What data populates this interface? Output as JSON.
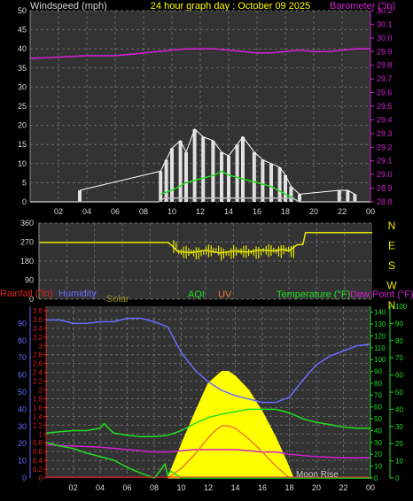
{
  "header": {
    "windspeed_label": "Windspeed (mph)",
    "title": "24 hour graph day : October 09 2025",
    "barometer_label": "Barometer (″in)"
  },
  "colors": {
    "background": "#000000",
    "plot_bg": "#333333",
    "grid": "#6a6a6a",
    "wind_gust": "#ffffff",
    "wind_avg": "#22dd22",
    "wind_base": "#bbbbbb",
    "barometer": "#d020d0",
    "direction": "#e8e800",
    "humidity": "#6a6aff",
    "solar": "#ffff00",
    "uv": "#f07c30",
    "temperature": "#22dd22",
    "dew_point": "#d020d0",
    "rain": "#e02020",
    "aqi": "#22dd22",
    "moon": "#c8c8c8"
  },
  "chart_data": [
    {
      "id": "wind-barometer",
      "type": "line",
      "x_ticks": [
        "02",
        "04",
        "06",
        "08",
        "10",
        "12",
        "14",
        "16",
        "18",
        "20",
        "22",
        "00"
      ],
      "y_left": {
        "label": "Windspeed (mph)",
        "ticks": [
          0,
          5,
          10,
          15,
          20,
          25,
          30,
          35,
          40,
          45,
          50
        ],
        "range": [
          0,
          50
        ]
      },
      "y_right": {
        "label": "Barometer (″in)",
        "ticks": [
          28.8,
          28.9,
          29.0,
          29.1,
          29.2,
          29.3,
          29.4,
          29.5,
          29.6,
          29.7,
          29.8,
          29.9,
          30.0,
          30.1,
          30.2
        ],
        "range": [
          28.8,
          30.2
        ]
      },
      "series": [
        {
          "id": "barometer",
          "color_key": "barometer",
          "axis": "right",
          "points": [
            [
              0,
              29.85
            ],
            [
              2,
              29.86
            ],
            [
              4,
              29.87
            ],
            [
              6,
              29.87
            ],
            [
              7,
              29.88
            ],
            [
              8,
              29.89
            ],
            [
              9,
              29.9
            ],
            [
              10,
              29.91
            ],
            [
              11,
              29.92
            ],
            [
              12,
              29.92
            ],
            [
              13,
              29.92
            ],
            [
              14,
              29.91
            ],
            [
              15,
              29.9
            ],
            [
              16,
              29.89
            ],
            [
              17,
              29.89
            ],
            [
              18,
              29.9
            ],
            [
              19,
              29.91
            ],
            [
              20,
              29.9
            ],
            [
              21,
              29.9
            ],
            [
              22,
              29.91
            ],
            [
              23,
              29.92
            ],
            [
              24,
              29.92
            ]
          ]
        },
        {
          "id": "wind-gust",
          "color_key": "wind_gust",
          "axis": "left",
          "points": [
            [
              3.5,
              3
            ],
            [
              9.2,
              8
            ],
            [
              9.6,
              11
            ],
            [
              10,
              14
            ],
            [
              10.6,
              16
            ],
            [
              11,
              13
            ],
            [
              11.6,
              19
            ],
            [
              12.2,
              17
            ],
            [
              12.9,
              16
            ],
            [
              13.5,
              13
            ],
            [
              14,
              12
            ],
            [
              14.6,
              15
            ],
            [
              15,
              17
            ],
            [
              15.8,
              13
            ],
            [
              16.4,
              11
            ],
            [
              17,
              10
            ],
            [
              17.6,
              9
            ],
            [
              18,
              7
            ],
            [
              18.4,
              4
            ],
            [
              19,
              2
            ],
            [
              21.8,
              3
            ],
            [
              22.4,
              3
            ],
            [
              22.9,
              2
            ]
          ]
        },
        {
          "id": "wind-avg",
          "color_key": "wind_avg",
          "axis": "left",
          "points": [
            [
              9.2,
              2
            ],
            [
              10,
              3
            ],
            [
              11,
              5
            ],
            [
              12,
              6
            ],
            [
              13,
              7
            ],
            [
              13.5,
              8
            ],
            [
              14,
              7
            ],
            [
              15,
              6
            ],
            [
              16,
              5
            ],
            [
              17,
              4
            ],
            [
              18,
              2
            ],
            [
              18.6,
              1
            ]
          ]
        },
        {
          "id": "wind-base",
          "color_key": "wind_base",
          "axis": "left",
          "points": [
            [
              0,
              0
            ],
            [
              9,
              0
            ],
            [
              9.5,
              1
            ],
            [
              18.5,
              1
            ],
            [
              19,
              0
            ],
            [
              24,
              0
            ]
          ]
        }
      ]
    },
    {
      "id": "wind-direction",
      "type": "line",
      "x_ticks": [],
      "y_left": {
        "ticks": [
          0,
          90,
          180,
          270,
          360
        ],
        "range": [
          0,
          360
        ]
      },
      "compass": [
        "N",
        "W",
        "S",
        "E",
        "N"
      ],
      "series": [
        {
          "id": "direction",
          "color_key": "direction",
          "points": [
            [
              0,
              268
            ],
            [
              9.3,
              268
            ],
            [
              9.6,
              252
            ],
            [
              10,
              225
            ],
            [
              11,
              220
            ],
            [
              12,
              232
            ],
            [
              13,
              218
            ],
            [
              14,
              228
            ],
            [
              15,
              223
            ],
            [
              16,
              233
            ],
            [
              17,
              228
            ],
            [
              17.5,
              236
            ],
            [
              18,
              228
            ],
            [
              18.6,
              258
            ],
            [
              19,
              258
            ],
            [
              19.2,
              315
            ],
            [
              24,
              315
            ]
          ]
        }
      ]
    },
    {
      "id": "temp-humidity-solar",
      "type": "line",
      "legend": [
        "Rainfall (″in)",
        "Humidity",
        "Solar",
        "AQI",
        "UV",
        "Temperature (°F)",
        "Dew Point (°F)"
      ],
      "x_ticks": [
        "02",
        "04",
        "06",
        "08",
        "10",
        "12",
        "14",
        "16",
        "18",
        "20",
        "22",
        "00"
      ],
      "y_humidity": {
        "ticks": [
          0,
          10,
          20,
          30,
          40,
          50,
          60,
          70,
          80,
          90
        ],
        "range": [
          0,
          100
        ]
      },
      "y_rain": {
        "ticks": [
          0,
          0.2,
          0.4,
          0.6,
          0.8,
          1,
          1.2,
          1.4,
          1.6,
          1.8,
          2,
          2.2,
          2.4,
          2.6,
          2.8,
          3,
          3.2,
          3.4,
          3.6,
          3.8
        ],
        "range": [
          0,
          3.9
        ]
      },
      "y_temp_inner": {
        "ticks": [
          0,
          10,
          20,
          30,
          40,
          50,
          60,
          70,
          80,
          90,
          100,
          110,
          120,
          130,
          140
        ],
        "range": [
          0,
          145
        ]
      },
      "y_temp_outer": {
        "ticks": [
          0,
          10,
          20,
          30,
          40,
          50,
          60,
          70,
          80,
          90,
          100
        ],
        "range": [
          0,
          100
        ]
      },
      "annotation": "Moon Rise",
      "series": [
        {
          "id": "humidity",
          "color_key": "humidity",
          "axis": "humidity",
          "points": [
            [
              0,
              92
            ],
            [
              1,
              92
            ],
            [
              2,
              90
            ],
            [
              3,
              90
            ],
            [
              4,
              91
            ],
            [
              5,
              91
            ],
            [
              6,
              93
            ],
            [
              7,
              93
            ],
            [
              8,
              91
            ],
            [
              9,
              88
            ],
            [
              10,
              73
            ],
            [
              11,
              63
            ],
            [
              12,
              56
            ],
            [
              13,
              51
            ],
            [
              14,
              48
            ],
            [
              15,
              46
            ],
            [
              16,
              44
            ],
            [
              17,
              44
            ],
            [
              18,
              47
            ],
            [
              19,
              57
            ],
            [
              20,
              66
            ],
            [
              21,
              71
            ],
            [
              22,
              74
            ],
            [
              23,
              77
            ],
            [
              24,
              78
            ]
          ]
        },
        {
          "id": "temperature",
          "color_key": "temperature",
          "axis": "temp_inner",
          "points": [
            [
              0,
              38
            ],
            [
              1,
              39
            ],
            [
              2,
              40
            ],
            [
              3,
              40
            ],
            [
              4,
              42
            ],
            [
              4.3,
              46
            ],
            [
              4.7,
              41
            ],
            [
              5,
              38
            ],
            [
              6,
              36
            ],
            [
              7,
              35
            ],
            [
              8,
              35
            ],
            [
              9,
              36
            ],
            [
              10,
              40
            ],
            [
              11,
              46
            ],
            [
              12,
              51
            ],
            [
              13,
              54
            ],
            [
              14,
              56
            ],
            [
              15,
              58
            ],
            [
              16,
              58
            ],
            [
              17,
              58
            ],
            [
              18,
              55
            ],
            [
              19,
              50
            ],
            [
              20,
              47
            ],
            [
              21,
              45
            ],
            [
              22,
              43
            ],
            [
              23,
              42
            ],
            [
              24,
              42
            ]
          ]
        },
        {
          "id": "dew-point",
          "color_key": "dew_point",
          "axis": "temp_inner",
          "points": [
            [
              0,
              28
            ],
            [
              2,
              27
            ],
            [
              4,
              26
            ],
            [
              6,
              24
            ],
            [
              8,
              22
            ],
            [
              9,
              22
            ],
            [
              10,
              23
            ],
            [
              11,
              24
            ],
            [
              12,
              24
            ],
            [
              13,
              24
            ],
            [
              14,
              24
            ],
            [
              15,
              23
            ],
            [
              16,
              22
            ],
            [
              17,
              22
            ],
            [
              18,
              20
            ],
            [
              19,
              19
            ],
            [
              20,
              18
            ],
            [
              22,
              17
            ],
            [
              24,
              17
            ]
          ]
        },
        {
          "id": "uv",
          "color_key": "uv",
          "axis": "temp_inner",
          "points": [
            [
              9,
              0
            ],
            [
              10,
              8
            ],
            [
              11,
              20
            ],
            [
              12,
              34
            ],
            [
              12.5,
              40
            ],
            [
              13,
              44
            ],
            [
              13.5,
              44
            ],
            [
              14,
              42
            ],
            [
              15,
              33
            ],
            [
              16,
              22
            ],
            [
              17,
              10
            ],
            [
              17.7,
              3
            ],
            [
              18,
              0
            ]
          ]
        },
        {
          "id": "aqi",
          "color_key": "aqi",
          "axis": "temp_inner",
          "points": [
            [
              0,
              30
            ],
            [
              1,
              27
            ],
            [
              2,
              25
            ],
            [
              3,
              21
            ],
            [
              4,
              18
            ],
            [
              5,
              15
            ],
            [
              6,
              9
            ],
            [
              7,
              4
            ],
            [
              7.5,
              2
            ],
            [
              8,
              0
            ],
            [
              8.5,
              7
            ],
            [
              8.8,
              12
            ],
            [
              9,
              2
            ],
            [
              9.2,
              6
            ],
            [
              10,
              0
            ],
            [
              24,
              0
            ]
          ]
        },
        {
          "id": "solar",
          "color_key": "solar",
          "axis": "temp_inner",
          "fill": true,
          "points": [
            [
              9,
              0
            ],
            [
              10,
              28
            ],
            [
              11,
              55
            ],
            [
              12,
              80
            ],
            [
              13,
              90
            ],
            [
              13.5,
              90
            ],
            [
              14,
              86
            ],
            [
              15,
              74
            ],
            [
              16,
              56
            ],
            [
              17,
              34
            ],
            [
              17.8,
              14
            ],
            [
              18.3,
              0
            ]
          ]
        }
      ]
    }
  ]
}
